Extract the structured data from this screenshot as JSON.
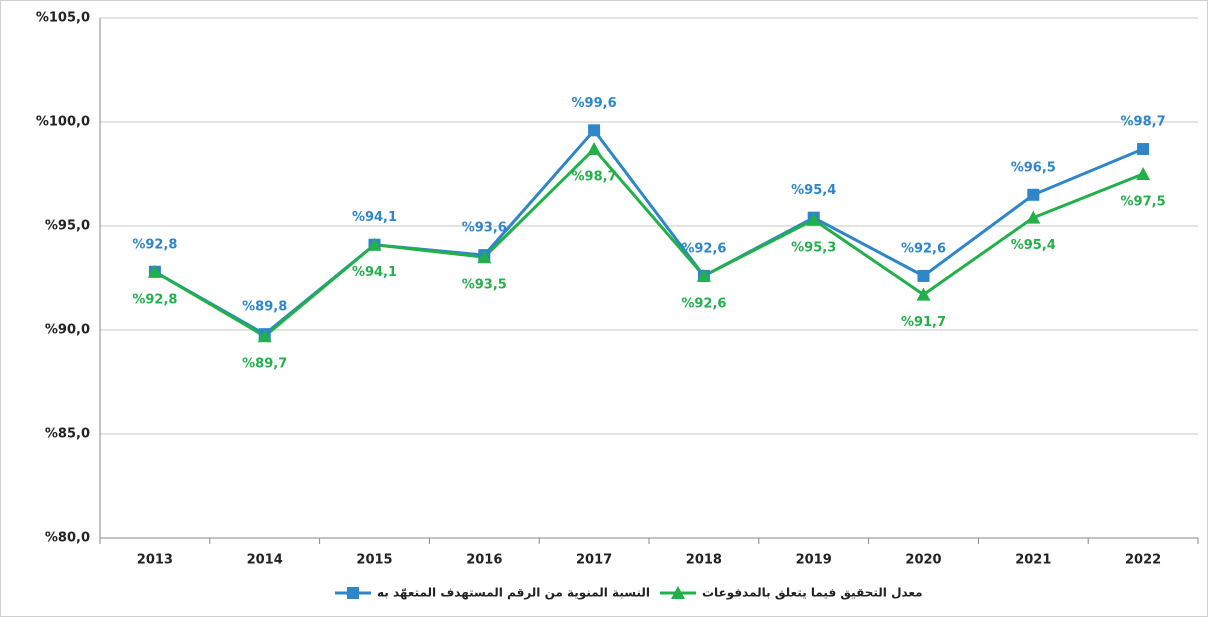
{
  "chart_data": {
    "type": "line",
    "categories": [
      "2013",
      "2014",
      "2015",
      "2016",
      "2017",
      "2018",
      "2019",
      "2020",
      "2021",
      "2022"
    ],
    "series": [
      {
        "name": "النسبة المنوية من الرقم المستهدف المتعهّد به",
        "color": "#2e86c8",
        "marker": "square",
        "values": [
          92.8,
          89.8,
          94.1,
          93.6,
          99.6,
          92.6,
          95.4,
          92.6,
          96.5,
          98.7
        ],
        "value_labels": [
          "%92,8",
          "%89,8",
          "%94,1",
          "%93,6",
          "%99,6",
          "%92,6",
          "%95,4",
          "%92,6",
          "%96,5",
          "%98,7"
        ]
      },
      {
        "name": "معدل التحقيق فيما يتعلق بالمدفوعات",
        "color": "#22b04b",
        "marker": "triangle",
        "values": [
          92.8,
          89.7,
          94.1,
          93.5,
          98.7,
          92.6,
          95.3,
          91.7,
          95.4,
          97.5
        ],
        "value_labels": [
          "%92,8",
          "%89,7",
          "%94,1",
          "%93,5",
          "%98,7",
          "%92,6",
          "%95,3",
          "%91,7",
          "%95,4",
          "%97,5"
        ]
      }
    ],
    "ylim": [
      80,
      105
    ],
    "yticks": [
      {
        "value": 80,
        "label": "%80,0"
      },
      {
        "value": 85,
        "label": "%85,0"
      },
      {
        "value": 90,
        "label": "%90,0"
      },
      {
        "value": 95,
        "label": "%95,0"
      },
      {
        "value": 100,
        "label": "%100,0"
      },
      {
        "value": 105,
        "label": "%105,0"
      }
    ],
    "grid": true,
    "legend": "bottom"
  }
}
